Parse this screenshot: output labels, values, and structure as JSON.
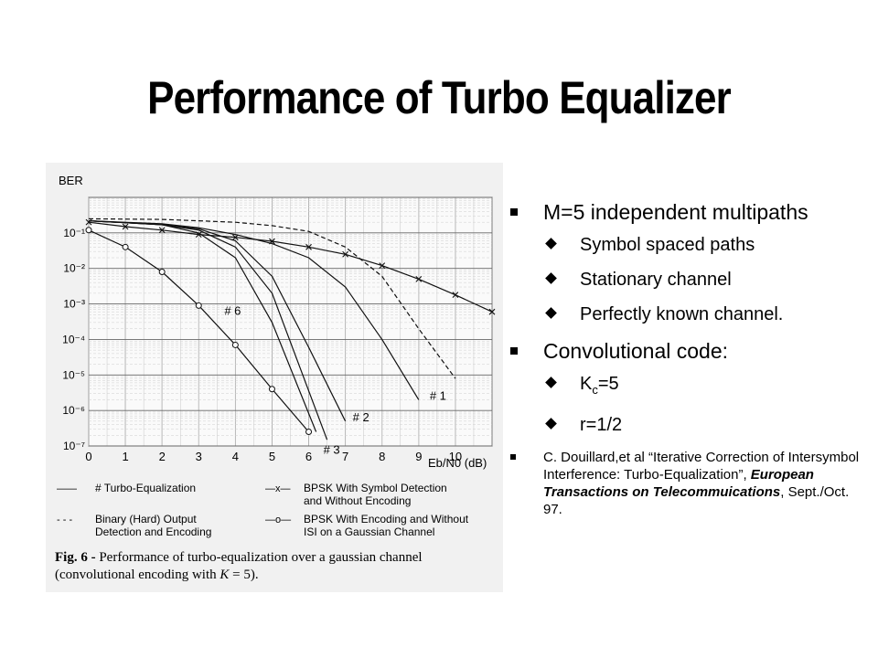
{
  "slide": {
    "title": "Performance of Turbo Equalizer",
    "bullets": [
      {
        "text": "M=5 independent multipaths",
        "sub": [
          "Symbol spaced paths",
          "Stationary channel",
          "Perfectly known channel."
        ]
      },
      {
        "text": "Convolutional code:",
        "sub_kc": {
          "base": "K",
          "subscript": "c",
          "rest": "=5"
        },
        "sub_r": "r=1/2"
      }
    ],
    "reference": {
      "prefix": "C. Douillard,et al “Iterative Correction of Intersymbol Interference: Turbo-Equalization”, ",
      "journal": "European Transactions on Telecommuications",
      "suffix": ", Sept./Oct. 97."
    }
  },
  "chart_data": {
    "type": "line",
    "title": "",
    "xlabel": "Eb/N0 (dB)",
    "ylabel": "BER",
    "y_scale": "log",
    "xlim": [
      0,
      11
    ],
    "ylim": [
      1e-07,
      1
    ],
    "x_ticks": [
      "0",
      "1",
      "2",
      "3",
      "4",
      "5",
      "6",
      "7",
      "8",
      "9",
      "10"
    ],
    "y_ticks": [
      "10⁻¹",
      "10⁻²",
      "10⁻³",
      "10⁻⁴",
      "10⁻⁵",
      "10⁻⁶",
      "10⁻⁷"
    ],
    "series": [
      {
        "name": "BPSK With Symbol Detection and Without Encoding",
        "style": "solid-x",
        "x": [
          0,
          1,
          2,
          3,
          4,
          5,
          6,
          7,
          8,
          9,
          10,
          11
        ],
        "y": [
          0.2,
          0.15,
          0.12,
          0.09,
          0.075,
          0.058,
          0.04,
          0.025,
          0.012,
          0.005,
          0.0018,
          0.0006
        ]
      },
      {
        "name": "Binary (Hard) Output Detection and Encoding",
        "style": "dashed",
        "x": [
          0,
          2,
          3,
          4,
          5,
          6,
          7,
          8,
          9,
          10
        ],
        "y": [
          0.25,
          0.24,
          0.22,
          0.2,
          0.16,
          0.11,
          0.04,
          0.006,
          0.0002,
          8e-06
        ]
      },
      {
        "name": "BPSK With Encoding and Without ISI on a Gaussian Channel",
        "style": "solid-o",
        "x": [
          0,
          1,
          2,
          3,
          4,
          5,
          6
        ],
        "y": [
          0.12,
          0.04,
          0.008,
          0.0009,
          7e-05,
          4e-06,
          2.5e-07
        ]
      },
      {
        "name": "# 1",
        "style": "solid",
        "x": [
          0,
          2,
          3,
          4,
          5,
          6,
          7,
          8,
          9
        ],
        "y": [
          0.22,
          0.18,
          0.14,
          0.09,
          0.05,
          0.02,
          0.003,
          0.0001,
          2e-06
        ]
      },
      {
        "name": "# 2",
        "style": "solid",
        "x": [
          0,
          2,
          3,
          4,
          5,
          6,
          7
        ],
        "y": [
          0.22,
          0.17,
          0.13,
          0.06,
          0.006,
          6e-05,
          5e-07
        ]
      },
      {
        "name": "# 3",
        "style": "solid",
        "x": [
          0,
          2,
          3,
          4,
          5,
          6.5
        ],
        "y": [
          0.22,
          0.17,
          0.12,
          0.04,
          0.002,
          1.5e-07
        ]
      },
      {
        "name": "# 6",
        "style": "solid",
        "x": [
          0,
          2,
          3,
          4,
          5,
          6.2
        ],
        "y": [
          0.22,
          0.17,
          0.1,
          0.02,
          0.0003,
          2.5e-07
        ]
      }
    ],
    "curve_labels": [
      "# 1",
      "# 2",
      "# 3",
      "# 6"
    ],
    "legend": [
      {
        "sample": "——",
        "label": "# Turbo-Equalization"
      },
      {
        "sample": "- - -",
        "label": "Binary (Hard) Output"
      },
      {
        "sample": "",
        "label": "Detection and Encoding"
      },
      {
        "sample": "—x—",
        "label": "BPSK With Symbol Detection"
      },
      {
        "sample": "",
        "label": "and Without Encoding"
      },
      {
        "sample": "—o—",
        "label": "BPSK With Encoding and Without"
      },
      {
        "sample": "",
        "label": "ISI on a Gaussian Channel"
      }
    ],
    "caption_bold": "Fig. 6 -",
    "caption_line1": " Performance of turbo-equalization over a gaussian channel",
    "caption_line2": "(convolutional encoding with ",
    "caption_k": "K",
    "caption_end": " = 5)."
  }
}
